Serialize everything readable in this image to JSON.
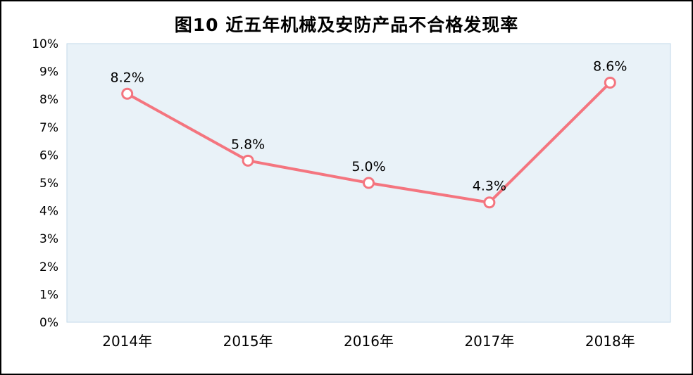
{
  "title": "图10 近五年机械及安防产品不合格发现率",
  "chart_data": {
    "type": "line",
    "title": "图10 近五年机械及安防产品不合格发现率",
    "categories": [
      "2014年",
      "2015年",
      "2016年",
      "2017年",
      "2018年"
    ],
    "values": [
      8.2,
      5.8,
      5.0,
      4.3,
      8.6
    ],
    "data_labels": [
      "8.2%",
      "5.8%",
      "5.0%",
      "4.3%",
      "8.6%"
    ],
    "xlabel": "",
    "ylabel": "",
    "ylim": [
      0,
      10
    ],
    "ytick_step": 1,
    "ytick_labels": [
      "0%",
      "1%",
      "2%",
      "3%",
      "4%",
      "5%",
      "6%",
      "7%",
      "8%",
      "9%",
      "10%"
    ],
    "grid": false,
    "legend": "none",
    "line_color": "#F4757F",
    "marker_fill": "#FFFFFF",
    "text_color": "#000000",
    "plot_bg": "#E9F2F8",
    "plot_border": "#C3DAEA"
  }
}
